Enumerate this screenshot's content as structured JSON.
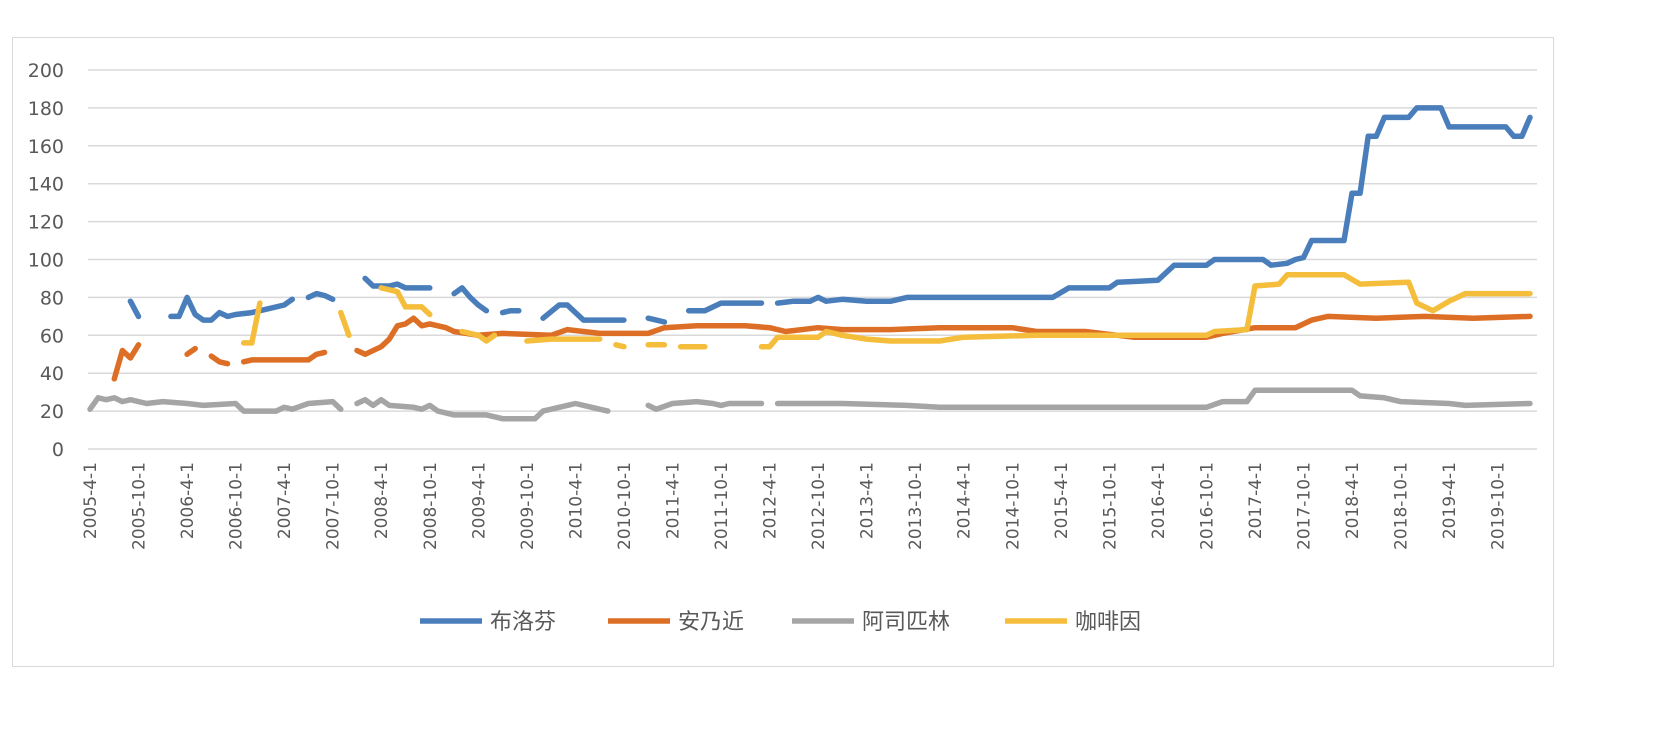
{
  "chart_data": {
    "type": "line",
    "ylim": [
      0,
      200
    ],
    "yticks": [
      0,
      20,
      40,
      60,
      80,
      100,
      120,
      140,
      160,
      180,
      200
    ],
    "grid": true,
    "legend_position": "bottom",
    "x_start": "2005-4",
    "x_end": "2020-2",
    "xtick_labels": [
      "2005-4-1",
      "2005-10-1",
      "2006-4-1",
      "2006-10-1",
      "2007-4-1",
      "2007-10-1",
      "2008-4-1",
      "2008-10-1",
      "2009-4-1",
      "2009-10-1",
      "2010-4-1",
      "2010-10-1",
      "2011-4-1",
      "2011-10-1",
      "2012-4-1",
      "2012-10-1",
      "2013-4-1",
      "2013-10-1",
      "2014-4-1",
      "2014-10-1",
      "2015-4-1",
      "2015-10-1",
      "2016-4-1",
      "2016-10-1",
      "2017-4-1",
      "2017-10-1",
      "2018-4-1",
      "2018-10-1",
      "2019-4-1",
      "2019-10-1"
    ],
    "series": [
      {
        "name": "布洛芬",
        "color": "#4a7ebb",
        "points": [
          [
            "2005-9",
            78
          ],
          [
            "2005-10",
            70
          ],
          null,
          [
            "2006-2",
            70
          ],
          [
            "2006-3",
            70
          ],
          [
            "2006-4",
            80
          ],
          [
            "2006-5",
            71
          ],
          [
            "2006-6",
            68
          ],
          [
            "2006-7",
            68
          ],
          [
            "2006-8",
            72
          ],
          [
            "2006-9",
            70
          ],
          [
            "2006-10",
            71
          ],
          [
            "2006-12",
            72
          ],
          [
            "2007-2",
            74
          ],
          [
            "2007-4",
            76
          ],
          [
            "2007-5",
            79
          ],
          null,
          [
            "2007-7",
            80
          ],
          [
            "2007-8",
            82
          ],
          [
            "2007-9",
            81
          ],
          [
            "2007-10",
            79
          ],
          null,
          [
            "2008-2",
            90
          ],
          [
            "2008-3",
            86
          ],
          [
            "2008-5",
            86
          ],
          [
            "2008-6",
            87
          ],
          [
            "2008-7",
            85
          ],
          [
            "2008-10",
            85
          ],
          null,
          [
            "2009-1",
            82
          ],
          [
            "2009-2",
            85
          ],
          [
            "2009-3",
            80
          ],
          [
            "2009-4",
            76
          ],
          [
            "2009-5",
            73
          ],
          null,
          [
            "2009-7",
            72
          ],
          [
            "2009-8",
            73
          ],
          [
            "2009-9",
            73
          ],
          null,
          [
            "2009-12",
            69
          ],
          [
            "2010-2",
            76
          ],
          [
            "2010-3",
            76
          ],
          [
            "2010-5",
            68
          ],
          [
            "2010-7",
            68
          ],
          [
            "2010-10",
            68
          ],
          null,
          [
            "2011-1",
            69
          ],
          [
            "2011-2",
            68
          ],
          [
            "2011-3",
            67
          ],
          null,
          [
            "2011-6",
            73
          ],
          [
            "2011-8",
            73
          ],
          [
            "2011-10",
            77
          ],
          [
            "2012-3",
            77
          ],
          null,
          [
            "2012-5",
            77
          ],
          [
            "2012-7",
            78
          ],
          [
            "2012-9",
            78
          ],
          [
            "2012-10",
            80
          ],
          [
            "2012-11",
            78
          ],
          [
            "2013-1",
            79
          ],
          [
            "2013-4",
            78
          ],
          [
            "2013-7",
            78
          ],
          [
            "2013-9",
            80
          ],
          [
            "2015-3",
            80
          ],
          [
            "2015-5",
            85
          ],
          [
            "2015-10",
            85
          ],
          [
            "2015-11",
            88
          ],
          [
            "2016-4",
            89
          ],
          [
            "2016-6",
            97
          ],
          [
            "2016-10",
            97
          ],
          [
            "2016-11",
            100
          ],
          [
            "2017-5",
            100
          ],
          [
            "2017-6",
            97
          ],
          [
            "2017-8",
            98
          ],
          [
            "2017-9",
            100
          ],
          [
            "2017-10",
            101
          ],
          [
            "2017-11",
            110
          ],
          [
            "2018-3",
            110
          ],
          [
            "2018-4",
            135
          ],
          [
            "2018-5",
            135
          ],
          [
            "2018-6",
            165
          ],
          [
            "2018-7",
            165
          ],
          [
            "2018-8",
            175
          ],
          [
            "2018-11",
            175
          ],
          [
            "2018-12",
            180
          ],
          [
            "2019-3",
            180
          ],
          [
            "2019-4",
            170
          ],
          [
            "2019-11",
            170
          ],
          [
            "2019-12",
            165
          ],
          [
            "2020-1",
            165
          ],
          [
            "2020-2",
            175
          ]
        ]
      },
      {
        "name": "安乃近",
        "color": "#dd6e26",
        "points": [
          [
            "2005-7",
            37
          ],
          [
            "2005-8",
            52
          ],
          [
            "2005-9",
            48
          ],
          [
            "2005-10",
            55
          ],
          null,
          [
            "2006-4",
            50
          ],
          [
            "2006-5",
            53
          ],
          null,
          [
            "2006-7",
            49
          ],
          [
            "2006-8",
            46
          ],
          [
            "2006-9",
            45
          ],
          null,
          [
            "2006-11",
            46
          ],
          [
            "2006-12",
            47
          ],
          [
            "2007-7",
            47
          ],
          [
            "2007-8",
            50
          ],
          [
            "2007-9",
            51
          ],
          null,
          [
            "2008-1",
            52
          ],
          [
            "2008-2",
            50
          ],
          [
            "2008-4",
            54
          ],
          [
            "2008-5",
            58
          ],
          [
            "2008-6",
            65
          ],
          [
            "2008-7",
            66
          ],
          [
            "2008-8",
            69
          ],
          [
            "2008-9",
            65
          ],
          [
            "2008-10",
            66
          ],
          [
            "2008-12",
            64
          ],
          [
            "2009-1",
            62
          ],
          [
            "2009-4",
            60
          ],
          [
            "2009-7",
            61
          ],
          [
            "2010-1",
            60
          ],
          [
            "2010-3",
            63
          ],
          [
            "2010-7",
            61
          ],
          [
            "2011-1",
            61
          ],
          [
            "2011-3",
            64
          ],
          [
            "2011-7",
            65
          ],
          [
            "2012-1",
            65
          ],
          [
            "2012-4",
            64
          ],
          [
            "2012-6",
            62
          ],
          [
            "2012-10",
            64
          ],
          [
            "2013-1",
            63
          ],
          [
            "2013-7",
            63
          ],
          [
            "2014-1",
            64
          ],
          [
            "2014-10",
            64
          ],
          [
            "2015-1",
            62
          ],
          [
            "2015-7",
            62
          ],
          [
            "2016-1",
            59
          ],
          [
            "2016-10",
            59
          ],
          [
            "2016-12",
            61
          ],
          [
            "2017-4",
            64
          ],
          [
            "2017-9",
            64
          ],
          [
            "2017-11",
            68
          ],
          [
            "2018-1",
            70
          ],
          [
            "2018-7",
            69
          ],
          [
            "2019-1",
            70
          ],
          [
            "2019-7",
            69
          ],
          [
            "2020-2",
            70
          ]
        ]
      },
      {
        "name": "阿司匹林",
        "color": "#a5a5a5",
        "points": [
          [
            "2005-4",
            21
          ],
          [
            "2005-5",
            27
          ],
          [
            "2005-6",
            26
          ],
          [
            "2005-7",
            27
          ],
          [
            "2005-8",
            25
          ],
          [
            "2005-9",
            26
          ],
          [
            "2005-11",
            24
          ],
          [
            "2006-1",
            25
          ],
          [
            "2006-4",
            24
          ],
          [
            "2006-6",
            23
          ],
          [
            "2006-10",
            24
          ],
          [
            "2006-11",
            20
          ],
          [
            "2007-3",
            20
          ],
          [
            "2007-4",
            22
          ],
          [
            "2007-5",
            21
          ],
          [
            "2007-7",
            24
          ],
          [
            "2007-10",
            25
          ],
          [
            "2007-11",
            21
          ],
          null,
          [
            "2008-1",
            24
          ],
          [
            "2008-2",
            26
          ],
          [
            "2008-3",
            23
          ],
          [
            "2008-4",
            26
          ],
          [
            "2008-5",
            23
          ],
          [
            "2008-8",
            22
          ],
          [
            "2008-9",
            21
          ],
          [
            "2008-10",
            23
          ],
          [
            "2008-11",
            20
          ],
          [
            "2009-1",
            18
          ],
          [
            "2009-5",
            18
          ],
          [
            "2009-7",
            16
          ],
          [
            "2009-9",
            16
          ],
          [
            "2009-11",
            16
          ],
          [
            "2009-12",
            20
          ],
          [
            "2010-3",
            23
          ],
          [
            "2010-4",
            24
          ],
          [
            "2010-6",
            22
          ],
          [
            "2010-8",
            20
          ],
          null,
          [
            "2011-1",
            23
          ],
          [
            "2011-2",
            21
          ],
          [
            "2011-4",
            24
          ],
          [
            "2011-7",
            25
          ],
          [
            "2011-9",
            24
          ],
          [
            "2011-10",
            23
          ],
          [
            "2011-11",
            24
          ],
          [
            "2012-1",
            24
          ],
          [
            "2012-3",
            24
          ],
          null,
          [
            "2012-5",
            24
          ],
          [
            "2012-7",
            24
          ],
          [
            "2013-1",
            24
          ],
          [
            "2013-9",
            23
          ],
          [
            "2014-1",
            22
          ],
          [
            "2016-10",
            22
          ],
          [
            "2016-12",
            25
          ],
          [
            "2017-3",
            25
          ],
          [
            "2017-4",
            31
          ],
          [
            "2018-4",
            31
          ],
          [
            "2018-5",
            28
          ],
          [
            "2018-8",
            27
          ],
          [
            "2018-10",
            25
          ],
          [
            "2019-4",
            24
          ],
          [
            "2019-6",
            23
          ],
          [
            "2020-2",
            24
          ]
        ]
      },
      {
        "name": "咖啡因",
        "color": "#f5bd3c",
        "points": [
          [
            "2006-11",
            56
          ],
          [
            "2006-12",
            56
          ],
          [
            "2007-1",
            77
          ],
          null,
          [
            "2007-11",
            72
          ],
          [
            "2007-12",
            60
          ],
          null,
          [
            "2008-4",
            85
          ],
          [
            "2008-6",
            83
          ],
          [
            "2008-7",
            75
          ],
          [
            "2008-9",
            75
          ],
          [
            "2008-10",
            71
          ],
          null,
          [
            "2009-2",
            62
          ],
          [
            "2009-4",
            60
          ],
          [
            "2009-5",
            57
          ],
          [
            "2009-6",
            60
          ],
          null,
          [
            "2009-10",
            57
          ],
          [
            "2010-1",
            58
          ],
          [
            "2010-7",
            58
          ],
          null,
          [
            "2010-9",
            55
          ],
          [
            "2010-10",
            54
          ],
          null,
          [
            "2011-1",
            55
          ],
          [
            "2011-3",
            55
          ],
          null,
          [
            "2011-5",
            54
          ],
          [
            "2011-8",
            54
          ],
          null,
          [
            "2012-3",
            54
          ],
          [
            "2012-4",
            54
          ],
          [
            "2012-5",
            59
          ],
          [
            "2012-10",
            59
          ],
          [
            "2012-11",
            62
          ],
          [
            "2013-1",
            60
          ],
          [
            "2013-4",
            58
          ],
          [
            "2013-7",
            57
          ],
          [
            "2014-1",
            57
          ],
          [
            "2014-4",
            59
          ],
          [
            "2015-1",
            60
          ],
          [
            "2016-10",
            60
          ],
          [
            "2016-11",
            62
          ],
          [
            "2017-3",
            63
          ],
          [
            "2017-4",
            86
          ],
          [
            "2017-7",
            87
          ],
          [
            "2017-8",
            92
          ],
          [
            "2018-3",
            92
          ],
          [
            "2018-5",
            87
          ],
          [
            "2018-11",
            88
          ],
          [
            "2018-12",
            77
          ],
          [
            "2019-2",
            73
          ],
          [
            "2019-4",
            78
          ],
          [
            "2019-6",
            82
          ],
          [
            "2020-2",
            82
          ]
        ]
      }
    ]
  }
}
